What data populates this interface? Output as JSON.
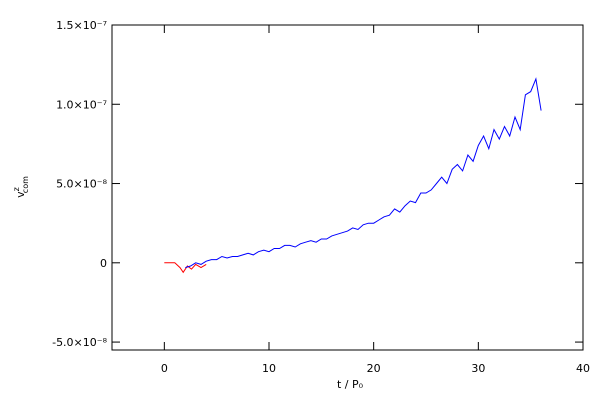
{
  "chart_data": {
    "type": "line",
    "xlabel": "t / P₀",
    "ylabel": {
      "base": "v",
      "sup": "z",
      "sub": "com"
    },
    "xlim": [
      -5,
      40
    ],
    "xticks": [
      0,
      10,
      20,
      30,
      40
    ],
    "ylim": [
      -5.5e-08,
      1.5e-07
    ],
    "yticks": [
      {
        "value": -5e-08,
        "label": "-5.0×10⁻⁸"
      },
      0,
      {
        "value": 5e-08,
        "label": "5.0×10⁻⁸"
      },
      {
        "value": 1e-07,
        "label": "1.0×10⁻⁷"
      },
      {
        "value": 1.5e-07,
        "label": "1.5×10⁻⁷"
      }
    ],
    "series": [
      {
        "color": "#ff0000",
        "x": [
          0,
          1,
          1.5,
          1.8,
          2.2,
          2.6,
          3,
          3.5,
          4
        ],
        "values": [
          0,
          0,
          -3e-09,
          -6e-09,
          -2e-09,
          -4e-09,
          -1e-09,
          -3e-09,
          -1e-09
        ]
      },
      {
        "color": "#0000ff",
        "x": [
          2,
          2.5,
          3,
          3.5,
          4,
          4.5,
          5,
          5.5,
          6,
          6.5,
          7,
          7.5,
          8,
          8.5,
          9,
          9.5,
          10,
          10.5,
          11,
          11.5,
          12,
          12.5,
          13,
          13.5,
          14,
          14.5,
          15,
          15.5,
          16,
          16.5,
          17,
          17.5,
          18,
          18.5,
          19,
          19.5,
          20,
          20.5,
          21,
          21.5,
          22,
          22.5,
          23,
          23.5,
          24,
          24.5,
          25,
          25.5,
          26,
          26.5,
          27,
          27.5,
          28,
          28.5,
          29,
          29.5,
          30,
          30.5,
          31,
          31.5,
          32,
          32.5,
          33,
          33.5,
          34,
          34.5,
          35,
          35.5,
          36
        ],
        "values": [
          -3e-09,
          -2e-09,
          0,
          -1e-09,
          1e-09,
          2e-09,
          2e-09,
          4e-09,
          3e-09,
          4e-09,
          4e-09,
          5e-09,
          6e-09,
          5e-09,
          7e-09,
          8e-09,
          7e-09,
          9e-09,
          9e-09,
          1.1e-08,
          1.1e-08,
          1e-08,
          1.2e-08,
          1.3e-08,
          1.4e-08,
          1.3e-08,
          1.5e-08,
          1.5e-08,
          1.7e-08,
          1.8e-08,
          1.9e-08,
          2e-08,
          2.2e-08,
          2.1e-08,
          2.4e-08,
          2.5e-08,
          2.5e-08,
          2.7e-08,
          2.9e-08,
          3e-08,
          3.4e-08,
          3.2e-08,
          3.6e-08,
          3.9e-08,
          3.8e-08,
          4.4e-08,
          4.4e-08,
          4.6e-08,
          5e-08,
          5.4e-08,
          5e-08,
          5.9e-08,
          6.2e-08,
          5.8e-08,
          6.8e-08,
          6.4e-08,
          7.4e-08,
          8e-08,
          7.2e-08,
          8.4e-08,
          7.8e-08,
          8.6e-08,
          8e-08,
          9.2e-08,
          8.4e-08,
          1.06e-07,
          1.08e-07,
          1.16e-07,
          9.6e-08
        ]
      }
    ]
  }
}
